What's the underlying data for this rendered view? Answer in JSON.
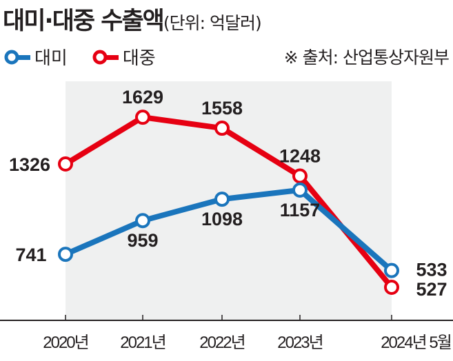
{
  "chart_data": {
    "type": "line",
    "title": "대미·대중 수출액",
    "unit": "(단위: 억달러)",
    "source": "※ 출처: 산업통상자원부",
    "categories": [
      "2020년",
      "2021년",
      "2022년",
      "2023년",
      "2024년 5월"
    ],
    "series": [
      {
        "name": "대미",
        "color": "#1a75bc",
        "values": [
          741,
          959,
          1098,
          1157,
          533
        ]
      },
      {
        "name": "대중",
        "color": "#e60012",
        "values": [
          1326,
          1629,
          1558,
          1248,
          527
        ]
      }
    ],
    "xlabel": "",
    "ylabel": "",
    "grid": false,
    "legend": "top-left"
  }
}
